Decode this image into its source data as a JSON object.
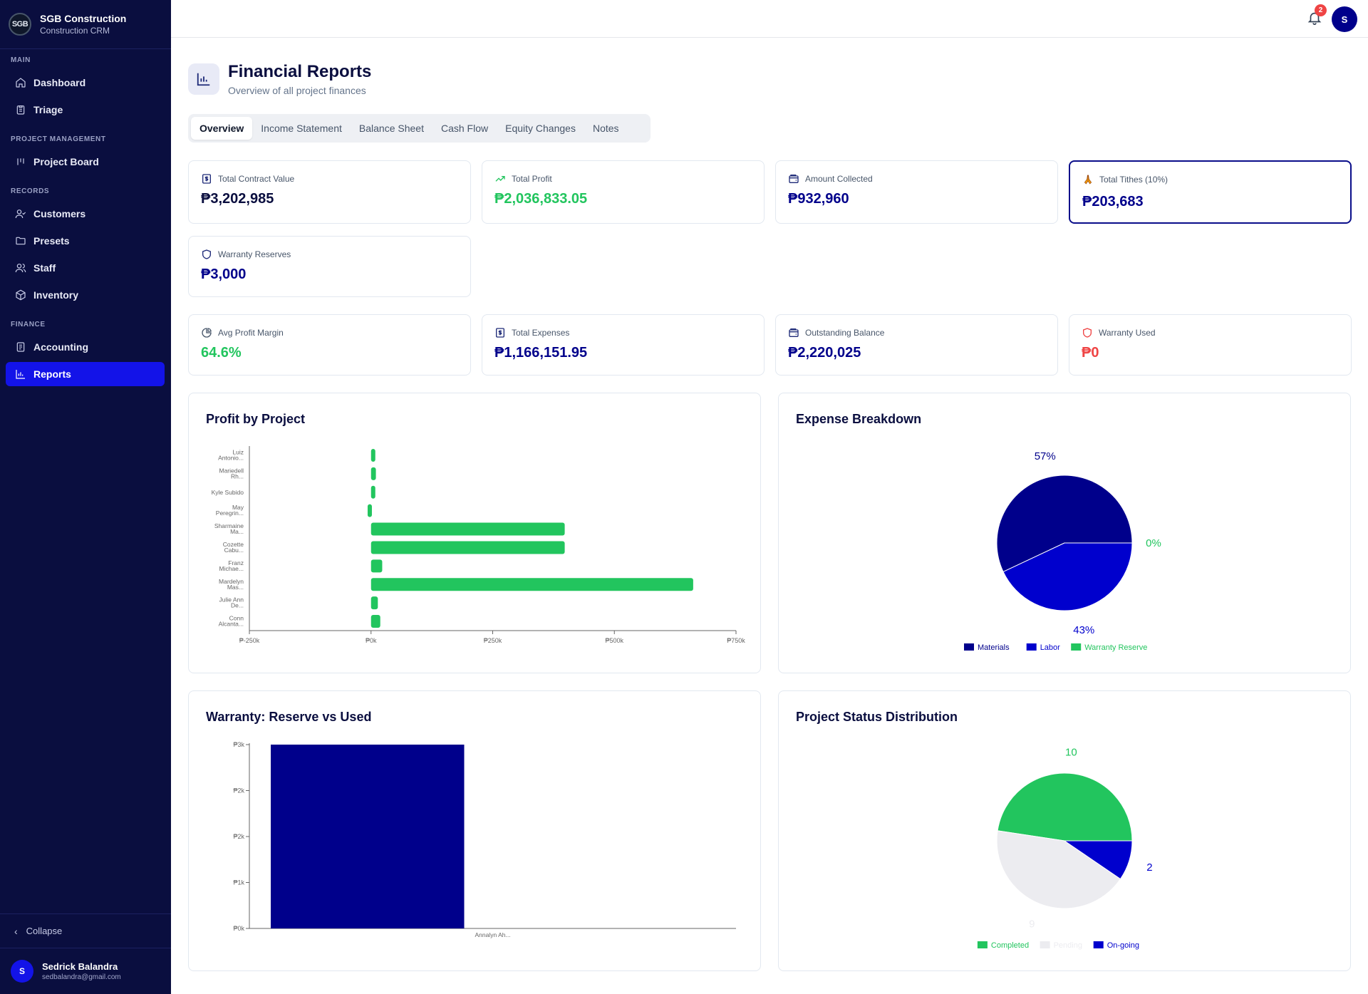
{
  "brand": {
    "name": "SGB Construction",
    "subtitle": "Construction CRM",
    "logo_text": "SGB"
  },
  "sidebar": {
    "sections": [
      {
        "label": "MAIN",
        "items": [
          {
            "label": "Dashboard",
            "icon": "home-icon"
          },
          {
            "label": "Triage",
            "icon": "clipboard-icon"
          }
        ]
      },
      {
        "label": "PROJECT MANAGEMENT",
        "items": [
          {
            "label": "Project Board",
            "icon": "kanban-icon"
          }
        ]
      },
      {
        "label": "RECORDS",
        "items": [
          {
            "label": "Customers",
            "icon": "user-check-icon"
          },
          {
            "label": "Presets",
            "icon": "folder-icon"
          },
          {
            "label": "Staff",
            "icon": "users-icon"
          },
          {
            "label": "Inventory",
            "icon": "package-icon"
          }
        ]
      },
      {
        "label": "FINANCE",
        "items": [
          {
            "label": "Accounting",
            "icon": "ledger-icon"
          },
          {
            "label": "Reports",
            "icon": "bar-chart-icon",
            "active": true
          }
        ]
      }
    ],
    "collapse_label": "Collapse",
    "user": {
      "initial": "S",
      "name": "Sedrick Balandra",
      "email": "sedbalandra@gmail.com"
    }
  },
  "topbar": {
    "notification_count": "2",
    "avatar_initial": "S"
  },
  "header": {
    "title": "Financial Reports",
    "subtitle": "Overview of all project finances"
  },
  "tabs": [
    "Overview",
    "Income Statement",
    "Balance Sheet",
    "Cash Flow",
    "Equity Changes",
    "Notes"
  ],
  "stats": {
    "total_contract_value": {
      "label": "Total Contract Value",
      "value": "₱3,202,985"
    },
    "total_profit": {
      "label": "Total Profit",
      "value": "₱2,036,833.05"
    },
    "amount_collected": {
      "label": "Amount Collected",
      "value": "₱932,960"
    },
    "total_tithes": {
      "label": "Total Tithes (10%)",
      "value": "₱203,683"
    },
    "warranty_reserves": {
      "label": "Warranty Reserves",
      "value": "₱3,000"
    },
    "avg_profit_margin": {
      "label": "Avg Profit Margin",
      "value": "64.6%"
    },
    "total_expenses": {
      "label": "Total Expenses",
      "value": "₱1,166,151.95"
    },
    "outstanding_balance": {
      "label": "Outstanding Balance",
      "value": "₱2,220,025"
    },
    "warranty_used": {
      "label": "Warranty Used",
      "value": "₱0"
    }
  },
  "colors": {
    "navy": "#00008b",
    "blue": "#0000cd",
    "green": "#22c55e",
    "red": "#ef4444",
    "gray": "#ececf0"
  },
  "chart_data": [
    {
      "type": "bar",
      "orientation": "horizontal",
      "title": "Profit by Project",
      "categories": [
        [
          "Luiz",
          "Antonio..."
        ],
        [
          "Mariedell",
          "Rh..."
        ],
        [
          "Kyle Subido"
        ],
        [
          "May",
          "Peregrin..."
        ],
        [
          "Sharmaine",
          "Ma..."
        ],
        [
          "Cozette",
          "Cabu..."
        ],
        [
          "Franz",
          "Michae..."
        ],
        [
          "Mardelyn",
          "Mas..."
        ],
        [
          "Julie Ann",
          "De..."
        ],
        [
          "Conn",
          "Alcanta..."
        ]
      ],
      "values": [
        8000,
        10000,
        6000,
        -7000,
        398000,
        398000,
        23000,
        662000,
        14000,
        19000
      ],
      "xlim": [
        -250000,
        750000
      ],
      "xticks": [
        "₱-250k",
        "₱0k",
        "₱250k",
        "₱500k",
        "₱750k"
      ],
      "color": "#22c55e"
    },
    {
      "type": "pie",
      "title": "Expense Breakdown",
      "slices": [
        {
          "name": "Materials",
          "value": 57,
          "label": "57%",
          "color": "#00008b"
        },
        {
          "name": "Labor",
          "value": 43,
          "label": "43%",
          "color": "#0000cd"
        },
        {
          "name": "Warranty Reserve",
          "value": 0,
          "label": "0%",
          "color": "#22c55e"
        }
      ]
    },
    {
      "type": "bar",
      "title": "Warranty: Reserve vs Used",
      "categories": [
        "Annalyn Ah..."
      ],
      "values": [
        3000
      ],
      "ylim": [
        0,
        3000
      ],
      "yticks": [
        "₱0k",
        "₱1k",
        "₱2k",
        "₱2k",
        "₱3k"
      ],
      "color": "#00008b"
    },
    {
      "type": "pie",
      "title": "Project Status Distribution",
      "slices": [
        {
          "name": "Completed",
          "value": 10,
          "label": "10",
          "color": "#22c55e"
        },
        {
          "name": "Pending",
          "value": 9,
          "label": "9",
          "color": "#ececf0"
        },
        {
          "name": "On-going",
          "value": 2,
          "label": "2",
          "color": "#0000cd"
        }
      ]
    }
  ]
}
